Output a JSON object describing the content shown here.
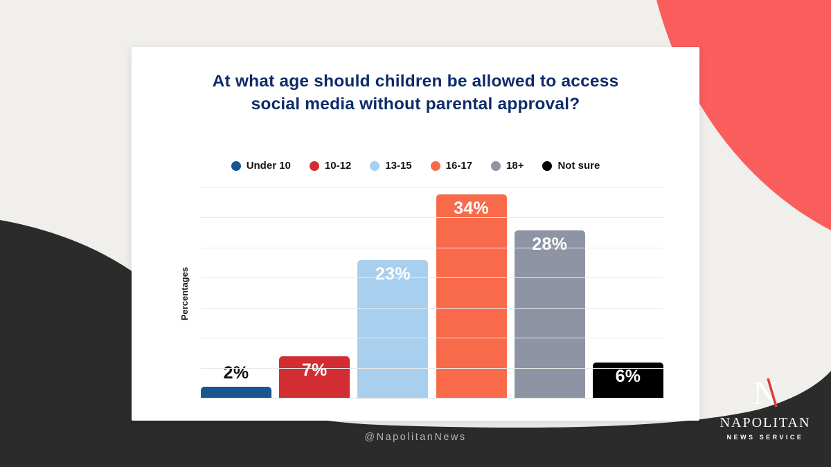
{
  "background": {
    "page_bg": "#f0efec",
    "coral_blob_color": "#f95e5d",
    "dark_blob_color": "#2b2b2b"
  },
  "card": {
    "title_color": "#0e2c6b"
  },
  "chart_data": {
    "type": "bar",
    "title": "At what age should children be allowed to access social media without parental approval?",
    "categories": [
      "Under 10",
      "10-12",
      "13-15",
      "16-17",
      "18+",
      "Not sure"
    ],
    "values": [
      2,
      7,
      23,
      34,
      28,
      6
    ],
    "value_labels": [
      "2%",
      "7%",
      "23%",
      "34%",
      "28%",
      "6%"
    ],
    "colors": [
      "#17578f",
      "#d12d33",
      "#a9cfee",
      "#f96a4b",
      "#8e94a3",
      "#000000"
    ],
    "label_colors": [
      "#111111",
      "#ffffff",
      "#ffffff",
      "#ffffff",
      "#ffffff",
      "#ffffff"
    ],
    "label_placement": [
      "above",
      "inside",
      "inside",
      "inside",
      "inside",
      "inside"
    ],
    "xlabel": "",
    "ylabel": "Percentages",
    "ylim": [
      0,
      35
    ],
    "gridline_step": 5,
    "grid": true,
    "legend_position": "top"
  },
  "footer": {
    "handle": "@NapolitanNews"
  },
  "logo": {
    "monogram": "N",
    "name": "NAPOLITAN",
    "tagline": "NEWS SERVICE",
    "accent_color": "#e03a3a"
  }
}
